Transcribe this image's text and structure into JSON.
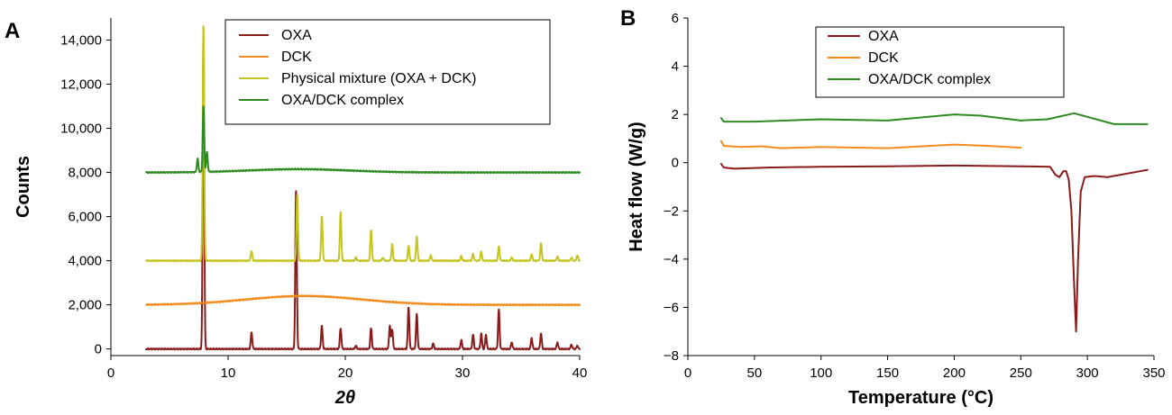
{
  "chart_data": [
    {
      "panel": "A",
      "type": "line",
      "xlabel": "2θ",
      "ylabel": "Counts",
      "xlim": [
        0,
        40
      ],
      "ylim": [
        -300,
        15000
      ],
      "xticks": [
        0,
        10,
        20,
        30,
        40
      ],
      "yticks": [
        0,
        2000,
        4000,
        6000,
        8000,
        10000,
        12000,
        14000
      ],
      "ytick_labels": [
        "0",
        "2,000",
        "4,000",
        "6,000",
        "8,000",
        "10,000",
        "12,000",
        "14,000"
      ],
      "legend_position": "top-right",
      "grid": false,
      "colors": {
        "OXA": "#8b1a1a",
        "DCK": "#f28c1c",
        "Physical mixture (OXA + DCK)": "#c5c51f",
        "OXA/DCK complex": "#2e8b22"
      },
      "series": [
        {
          "name": "OXA",
          "baseline": 0,
          "start": 3,
          "end": 40,
          "peaks": [
            [
              7.9,
              14500
            ],
            [
              12.0,
              750
            ],
            [
              15.8,
              7200
            ],
            [
              18.0,
              1050
            ],
            [
              19.6,
              950
            ],
            [
              20.9,
              150
            ],
            [
              22.2,
              950
            ],
            [
              23.8,
              1050
            ],
            [
              24.0,
              900
            ],
            [
              25.4,
              1900
            ],
            [
              26.1,
              1600
            ],
            [
              27.5,
              250
            ],
            [
              29.9,
              400
            ],
            [
              30.9,
              650
            ],
            [
              31.6,
              700
            ],
            [
              32.0,
              650
            ],
            [
              33.1,
              1800
            ],
            [
              34.2,
              300
            ],
            [
              35.9,
              500
            ],
            [
              36.7,
              700
            ],
            [
              38.1,
              300
            ],
            [
              39.3,
              200
            ],
            [
              39.8,
              150
            ]
          ]
        },
        {
          "name": "DCK",
          "baseline": 2000,
          "start": 3,
          "end": 40,
          "hump": [
            16.5,
            400,
            7
          ]
        },
        {
          "name": "Physical mixture (OXA + DCK)",
          "baseline": 4000,
          "start": 3,
          "end": 40,
          "peaks": [
            [
              7.9,
              10800
            ],
            [
              12.0,
              450
            ],
            [
              15.9,
              3000
            ],
            [
              18.0,
              2050
            ],
            [
              19.6,
              2200
            ],
            [
              20.9,
              150
            ],
            [
              22.2,
              1400
            ],
            [
              23.2,
              150
            ],
            [
              24.0,
              750
            ],
            [
              25.4,
              700
            ],
            [
              26.1,
              1100
            ],
            [
              27.3,
              250
            ],
            [
              29.9,
              200
            ],
            [
              30.9,
              300
            ],
            [
              31.6,
              400
            ],
            [
              33.1,
              650
            ],
            [
              34.2,
              150
            ],
            [
              35.9,
              300
            ],
            [
              36.7,
              800
            ],
            [
              38.1,
              200
            ],
            [
              39.3,
              150
            ],
            [
              39.8,
              250
            ]
          ]
        },
        {
          "name": "OXA/DCK complex",
          "baseline": 8000,
          "start": 3,
          "end": 40,
          "peaks": [
            [
              7.4,
              600
            ],
            [
              7.9,
              3000
            ],
            [
              8.2,
              900
            ]
          ],
          "hump": [
            16.0,
            150,
            6
          ]
        }
      ]
    },
    {
      "panel": "B",
      "type": "line",
      "xlabel": "Temperature (°C)",
      "ylabel": "Heat flow (W/g)",
      "xlim": [
        0,
        350
      ],
      "ylim": [
        -8,
        6
      ],
      "xticks": [
        0,
        50,
        100,
        150,
        200,
        250,
        300,
        350
      ],
      "yticks": [
        -8,
        -6,
        -4,
        -2,
        0,
        2,
        4,
        6
      ],
      "ytick_labels": [
        "−8",
        "−6",
        "−4",
        "−2",
        "0",
        "2",
        "4",
        "6"
      ],
      "legend_position": "top-center",
      "grid": false,
      "colors": {
        "OXA": "#8b1a1a",
        "DCK": "#f28c1c",
        "OXA/DCK complex": "#2e8b22"
      },
      "series": [
        {
          "name": "OXA",
          "points": [
            [
              25,
              -0.05
            ],
            [
              27,
              -0.2
            ],
            [
              35,
              -0.25
            ],
            [
              60,
              -0.2
            ],
            [
              100,
              -0.17
            ],
            [
              150,
              -0.15
            ],
            [
              200,
              -0.12
            ],
            [
              250,
              -0.15
            ],
            [
              272,
              -0.17
            ],
            [
              276,
              -0.5
            ],
            [
              279,
              -0.6
            ],
            [
              282,
              -0.35
            ],
            [
              284,
              -0.35
            ],
            [
              286,
              -0.7
            ],
            [
              288,
              -2.0
            ],
            [
              290,
              -5.0
            ],
            [
              291.5,
              -7.0
            ],
            [
              293,
              -4.0
            ],
            [
              295,
              -1.2
            ],
            [
              298,
              -0.6
            ],
            [
              305,
              -0.55
            ],
            [
              315,
              -0.6
            ],
            [
              325,
              -0.5
            ],
            [
              335,
              -0.4
            ],
            [
              345,
              -0.3
            ]
          ]
        },
        {
          "name": "DCK",
          "points": [
            [
              25,
              0.9
            ],
            [
              27,
              0.7
            ],
            [
              40,
              0.65
            ],
            [
              55,
              0.68
            ],
            [
              70,
              0.6
            ],
            [
              100,
              0.65
            ],
            [
              150,
              0.6
            ],
            [
              200,
              0.75
            ],
            [
              225,
              0.7
            ],
            [
              250,
              0.62
            ]
          ]
        },
        {
          "name": "OXA/DCK complex",
          "points": [
            [
              25,
              1.85
            ],
            [
              27,
              1.7
            ],
            [
              50,
              1.7
            ],
            [
              100,
              1.8
            ],
            [
              150,
              1.75
            ],
            [
              200,
              2.0
            ],
            [
              220,
              1.95
            ],
            [
              250,
              1.75
            ],
            [
              270,
              1.8
            ],
            [
              290,
              2.05
            ],
            [
              300,
              1.9
            ],
            [
              320,
              1.6
            ],
            [
              345,
              1.6
            ]
          ]
        }
      ]
    }
  ]
}
